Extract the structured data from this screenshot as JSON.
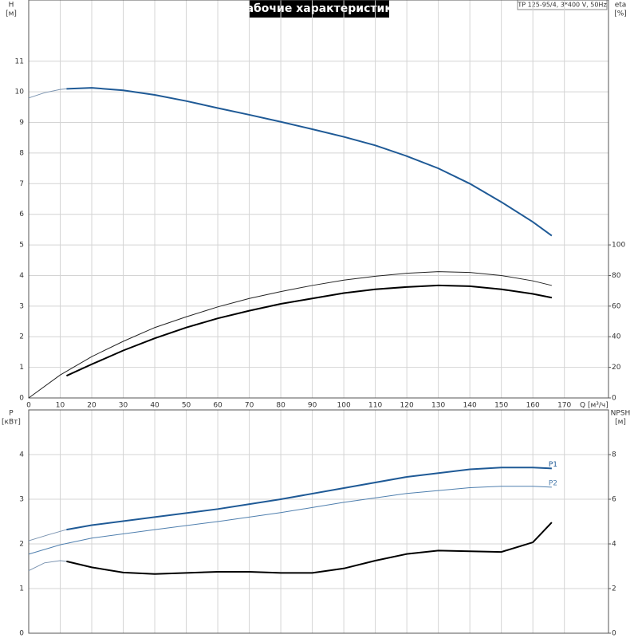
{
  "chart_data": [
    {
      "type": "line",
      "title": "Рабочие характеристики",
      "subtitle": "TP 125-95/4, 3*400 V, 50Hz",
      "ylabel": "H",
      "yunit": "[м]",
      "y2label": "eta",
      "y2unit": "[%]",
      "xlabel": "Q [м³/ч]",
      "xlim": [
        0,
        184
      ],
      "xticks": [
        0,
        10,
        20,
        30,
        40,
        50,
        60,
        70,
        80,
        90,
        100,
        110,
        120,
        130,
        140,
        150,
        160,
        170
      ],
      "ylim": [
        0,
        13
      ],
      "yticks": [
        0,
        1,
        2,
        3,
        4,
        5,
        6,
        7,
        8,
        9,
        10,
        11
      ],
      "y2lim": [
        0,
        260
      ],
      "y2ticks": [
        0,
        20,
        40,
        60,
        80,
        100
      ],
      "grid": true,
      "series": [
        {
          "color": "#7a93b0",
          "line_width": 1,
          "x": [
            0,
            5,
            10,
            12
          ],
          "values": [
            9.8,
            9.97,
            10.08,
            10.1
          ]
        },
        {
          "color": "#1f5a96",
          "line_width": 2,
          "x": [
            12,
            20,
            30,
            40,
            50,
            60,
            70,
            80,
            90,
            100,
            110,
            120,
            130,
            140,
            150,
            160,
            166
          ],
          "values": [
            10.1,
            10.13,
            10.05,
            9.9,
            9.7,
            9.47,
            9.25,
            9.02,
            8.78,
            8.53,
            8.25,
            7.9,
            7.5,
            7.0,
            6.4,
            5.75,
            5.3
          ]
        },
        {
          "color": "#222222",
          "line_width": 1,
          "axis": "y2",
          "x": [
            0,
            10,
            20,
            30,
            40,
            50,
            60,
            70,
            80,
            90,
            100,
            110,
            120,
            130,
            140,
            150,
            160,
            166
          ],
          "values": [
            0,
            15,
            27,
            37,
            46,
            53,
            59.5,
            65,
            69.5,
            73.5,
            77,
            79.5,
            81.5,
            82.5,
            82,
            80,
            76.5,
            73.5
          ]
        },
        {
          "color": "#000000",
          "line_width": 2,
          "axis": "y2",
          "x": [
            12,
            20,
            30,
            40,
            50,
            60,
            70,
            80,
            90,
            100,
            110,
            120,
            130,
            140,
            150,
            160,
            166
          ],
          "values": [
            14.5,
            22,
            31,
            39,
            46,
            52,
            57,
            61.5,
            65,
            68.5,
            71,
            72.5,
            73.5,
            73,
            71,
            68,
            65.5
          ]
        }
      ]
    },
    {
      "type": "line",
      "ylabel": "P",
      "yunit": "[кВт]",
      "y2label": "NPSH",
      "y2unit": "[м]",
      "xlim": [
        0,
        184
      ],
      "ylim": [
        0,
        5
      ],
      "yticks": [
        0,
        1,
        2,
        3,
        4
      ],
      "y2lim": [
        0,
        10
      ],
      "y2ticks": [
        0,
        2,
        4,
        6,
        8
      ],
      "grid": true,
      "series": [
        {
          "color": "#7a93b0",
          "line_width": 1,
          "x": [
            0,
            6,
            12
          ],
          "values": [
            2.07,
            2.2,
            2.32
          ]
        },
        {
          "name": "P1",
          "color": "#1f5a96",
          "line_width": 2,
          "x": [
            12,
            20,
            40,
            60,
            80,
            100,
            120,
            140,
            150,
            160,
            166
          ],
          "values": [
            2.32,
            2.42,
            2.6,
            2.78,
            3.0,
            3.25,
            3.5,
            3.67,
            3.71,
            3.71,
            3.69
          ]
        },
        {
          "name": "P2",
          "color": "#4f7fae",
          "line_width": 1,
          "x": [
            0,
            10,
            20,
            40,
            60,
            80,
            100,
            120,
            140,
            150,
            160,
            166
          ],
          "values": [
            1.77,
            1.98,
            2.13,
            2.32,
            2.5,
            2.7,
            2.93,
            3.13,
            3.26,
            3.29,
            3.29,
            3.27
          ]
        },
        {
          "color": "#7a93b0",
          "line_width": 1,
          "axis": "y2",
          "x": [
            0,
            5,
            10,
            12
          ],
          "values": [
            2.8,
            3.15,
            3.25,
            3.22
          ]
        },
        {
          "color": "#000000",
          "line_width": 2,
          "axis": "y2",
          "x": [
            12,
            20,
            30,
            40,
            50,
            60,
            70,
            80,
            90,
            100,
            110,
            120,
            130,
            140,
            150,
            160,
            166
          ],
          "values": [
            3.22,
            2.95,
            2.72,
            2.65,
            2.7,
            2.75,
            2.75,
            2.7,
            2.7,
            2.9,
            3.25,
            3.55,
            3.7,
            3.67,
            3.64,
            4.07,
            4.96
          ]
        }
      ]
    }
  ]
}
